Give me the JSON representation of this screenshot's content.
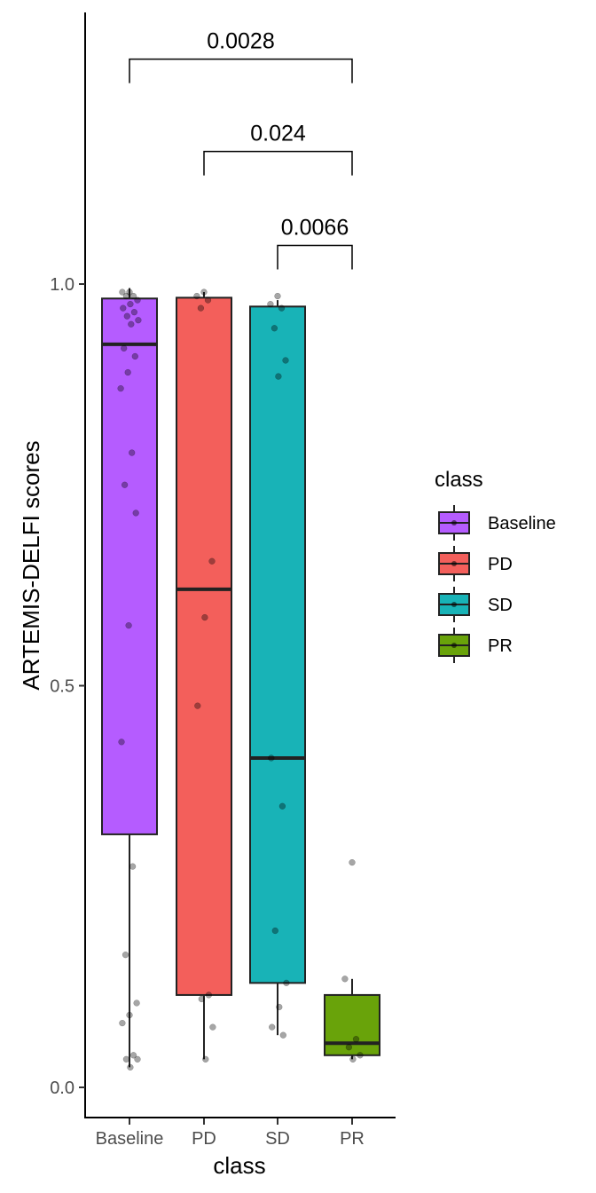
{
  "chart_data": {
    "type": "box",
    "title": "",
    "xlabel": "class",
    "ylabel": "ARTEMIS-DELFI scores",
    "ylim": [
      -0.025,
      1.345
    ],
    "y_ticks": [
      "0.0",
      "0.5",
      "1.0"
    ],
    "y_tick_values": [
      0.0,
      0.5,
      1.0
    ],
    "categories": [
      "Baseline",
      "PD",
      "SD",
      "PR"
    ],
    "colors": {
      "Baseline": "#b55cff",
      "PD": "#f35f5b",
      "SD": "#18b3b7",
      "PR": "#69a30a"
    },
    "grid": false,
    "legend_position": "right",
    "legend": {
      "title": "class",
      "entries": [
        "Baseline",
        "PD",
        "SD",
        "PR"
      ]
    },
    "boxes": [
      {
        "name": "Baseline",
        "whisker_low": 0.025,
        "q1": 0.315,
        "median": 0.925,
        "q3": 0.982,
        "whisker_high": 0.995,
        "points": [
          0.99,
          0.99,
          0.985,
          0.985,
          0.98,
          0.975,
          0.97,
          0.965,
          0.96,
          0.955,
          0.95,
          0.92,
          0.91,
          0.89,
          0.87,
          0.79,
          0.75,
          0.715,
          0.575,
          0.43,
          0.275,
          0.165,
          0.105,
          0.09,
          0.08,
          0.04,
          0.035,
          0.035,
          0.025
        ]
      },
      {
        "name": "PD",
        "whisker_low": 0.035,
        "q1": 0.115,
        "median": 0.62,
        "q3": 0.983,
        "whisker_high": 0.99,
        "points": [
          0.99,
          0.985,
          0.98,
          0.97,
          0.655,
          0.585,
          0.475,
          0.115,
          0.11,
          0.075,
          0.035
        ]
      },
      {
        "name": "SD",
        "whisker_low": 0.065,
        "q1": 0.13,
        "median": 0.41,
        "q3": 0.972,
        "whisker_high": 0.98,
        "points": [
          0.985,
          0.975,
          0.97,
          0.945,
          0.905,
          0.885,
          0.41,
          0.35,
          0.195,
          0.13,
          0.1,
          0.075,
          0.065
        ]
      },
      {
        "name": "PR",
        "whisker_low": 0.035,
        "q1": 0.04,
        "median": 0.055,
        "q3": 0.115,
        "whisker_high": 0.135,
        "points": [
          0.28,
          0.135,
          0.06,
          0.05,
          0.04,
          0.035
        ]
      }
    ],
    "annotations": [
      {
        "from": "Baseline",
        "to": "PR",
        "label": "0.0028",
        "y": 1.28
      },
      {
        "from": "PD",
        "to": "PR",
        "label": "0.024",
        "y": 1.165
      },
      {
        "from": "SD",
        "to": "PR",
        "label": "0.0066",
        "y": 1.048
      }
    ]
  }
}
